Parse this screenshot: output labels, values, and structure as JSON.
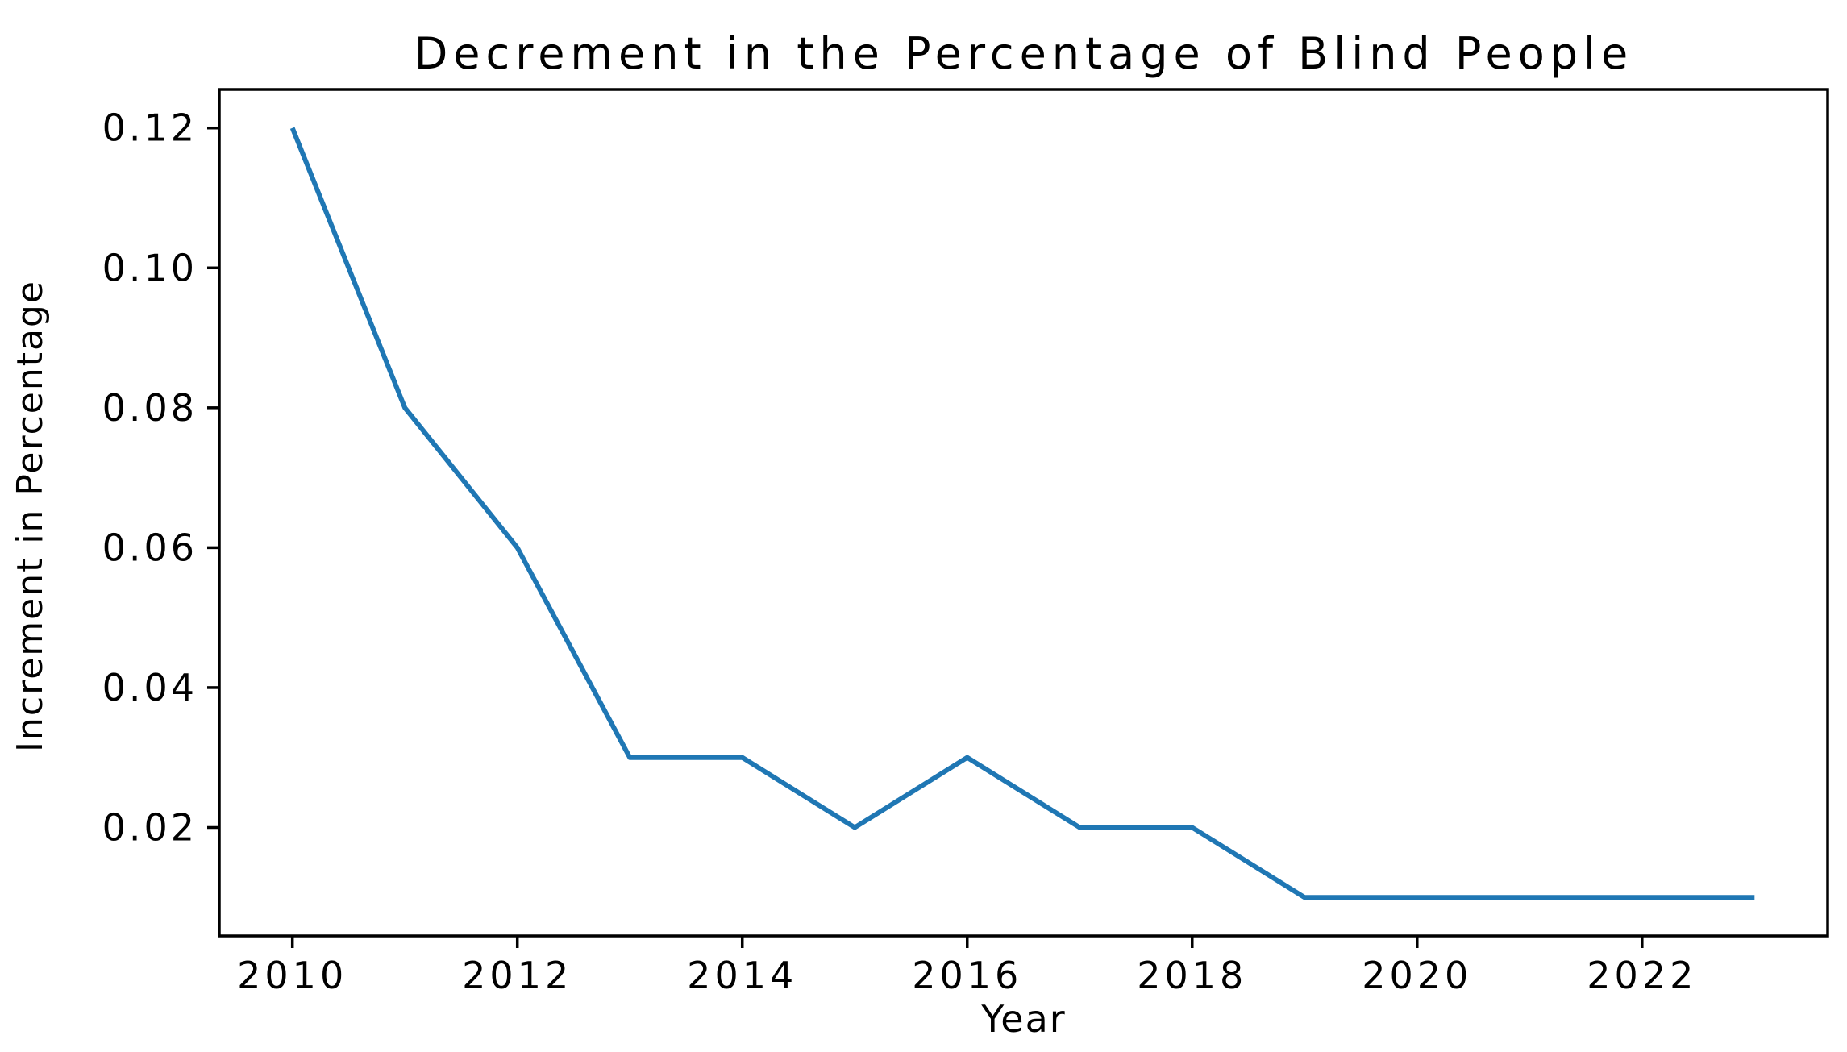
{
  "figure": {
    "background": "#ffffff"
  },
  "chart_data": {
    "type": "line",
    "title": "Decrement in the Percentage of Blind People",
    "xlabel": "Year",
    "ylabel": "Increment in Percentage",
    "x": [
      2010,
      2011,
      2012,
      2013,
      2014,
      2015,
      2016,
      2017,
      2018,
      2019,
      2020,
      2021,
      2022,
      2023
    ],
    "values": [
      0.12,
      0.08,
      0.06,
      0.03,
      0.03,
      0.02,
      0.03,
      0.02,
      0.02,
      0.01,
      0.01,
      0.01,
      0.01,
      0.01
    ],
    "xlim": [
      2009.35,
      2023.65
    ],
    "ylim": [
      0.0045,
      0.1255
    ],
    "xticks": {
      "values": [
        2010,
        2012,
        2014,
        2016,
        2018,
        2020,
        2022
      ],
      "labels": [
        "2010",
        "2012",
        "2014",
        "2016",
        "2018",
        "2020",
        "2022"
      ]
    },
    "yticks": {
      "values": [
        0.02,
        0.04,
        0.06,
        0.08,
        0.1,
        0.12
      ],
      "labels": [
        "0.02",
        "0.04",
        "0.06",
        "0.08",
        "0.10",
        "0.12"
      ]
    },
    "grid": false,
    "legend": null,
    "line_color": "#1f77b4",
    "frame_color": "#000000",
    "background": "#ffffff"
  }
}
